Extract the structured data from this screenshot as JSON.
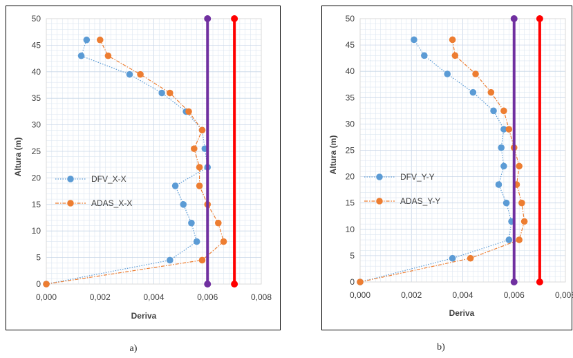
{
  "chart_data": [
    {
      "type": "scatter",
      "caption": "a)",
      "xlabel": "Deriva",
      "ylabel": "Altura (m)",
      "xlim": [
        0,
        0.008
      ],
      "ylim": [
        0,
        50
      ],
      "xticks": [
        "0,000",
        "0,002",
        "0,004",
        "0,006",
        "0,008"
      ],
      "yticks": [
        "0",
        "5",
        "10",
        "15",
        "20",
        "25",
        "30",
        "35",
        "40",
        "45",
        "50"
      ],
      "grid": true,
      "legend_position": "left-middle",
      "series": [
        {
          "name": "DFV_X-X",
          "color": "#5b9bd5",
          "style": "dotted",
          "points": [
            [
              0.0,
              0
            ],
            [
              0.0046,
              4.5
            ],
            [
              0.0056,
              8
            ],
            [
              0.0054,
              11.5
            ],
            [
              0.0051,
              15
            ],
            [
              0.0048,
              18.5
            ],
            [
              0.006,
              22
            ],
            [
              0.0059,
              25.5
            ],
            [
              0.0058,
              29
            ],
            [
              0.0052,
              32.5
            ],
            [
              0.0043,
              36
            ],
            [
              0.0031,
              39.5
            ],
            [
              0.0013,
              43
            ],
            [
              0.0015,
              46
            ]
          ]
        },
        {
          "name": "ADAS_X-X",
          "color": "#ed7d31",
          "style": "dashdot",
          "points": [
            [
              0.0,
              0
            ],
            [
              0.0058,
              4.5
            ],
            [
              0.0066,
              8
            ],
            [
              0.0064,
              11.5
            ],
            [
              0.006,
              15
            ],
            [
              0.0057,
              18.5
            ],
            [
              0.0057,
              22
            ],
            [
              0.0055,
              25.5
            ],
            [
              0.0058,
              29
            ],
            [
              0.0053,
              32.5
            ],
            [
              0.0046,
              36
            ],
            [
              0.0035,
              39.5
            ],
            [
              0.0023,
              43
            ],
            [
              0.002,
              46
            ]
          ]
        }
      ],
      "limit_lines": [
        {
          "x": 0.006,
          "color": "#7030a0",
          "y_range": [
            0,
            50
          ]
        },
        {
          "x": 0.007,
          "color": "#ff0000",
          "y_range": [
            0,
            50
          ]
        }
      ]
    },
    {
      "type": "scatter",
      "caption": "b)",
      "xlabel": "Deriva",
      "ylabel": "Altura (m)",
      "xlim": [
        0,
        0.008
      ],
      "ylim": [
        0,
        50
      ],
      "xticks": [
        "0,000",
        "0,002",
        "0,004",
        "0,006",
        "0,008"
      ],
      "yticks": [
        "0",
        "5",
        "10",
        "15",
        "20",
        "25",
        "30",
        "35",
        "40",
        "45",
        "50"
      ],
      "grid": true,
      "legend_position": "left-middle",
      "series": [
        {
          "name": "DFV_Y-Y",
          "color": "#5b9bd5",
          "style": "dotted",
          "points": [
            [
              0.0,
              0
            ],
            [
              0.0036,
              4.5
            ],
            [
              0.0058,
              8
            ],
            [
              0.0059,
              11.5
            ],
            [
              0.0057,
              15
            ],
            [
              0.0054,
              18.5
            ],
            [
              0.0056,
              22
            ],
            [
              0.0055,
              25.5
            ],
            [
              0.0056,
              29
            ],
            [
              0.0052,
              32.5
            ],
            [
              0.0044,
              36
            ],
            [
              0.0034,
              39.5
            ],
            [
              0.0025,
              43
            ],
            [
              0.0021,
              46
            ]
          ]
        },
        {
          "name": "ADAS_Y-Y",
          "color": "#ed7d31",
          "style": "dashdot",
          "points": [
            [
              0.0,
              0
            ],
            [
              0.0043,
              4.5
            ],
            [
              0.0062,
              8
            ],
            [
              0.0064,
              11.5
            ],
            [
              0.0063,
              15
            ],
            [
              0.0061,
              18.5
            ],
            [
              0.0062,
              22
            ],
            [
              0.006,
              25.5
            ],
            [
              0.0058,
              29
            ],
            [
              0.0056,
              32.5
            ],
            [
              0.0051,
              36
            ],
            [
              0.0045,
              39.5
            ],
            [
              0.0037,
              43
            ],
            [
              0.0036,
              46
            ]
          ]
        }
      ],
      "limit_lines": [
        {
          "x": 0.006,
          "color": "#7030a0",
          "y_range": [
            0,
            50
          ]
        },
        {
          "x": 0.007,
          "color": "#ff0000",
          "y_range": [
            0,
            50
          ]
        }
      ]
    }
  ]
}
